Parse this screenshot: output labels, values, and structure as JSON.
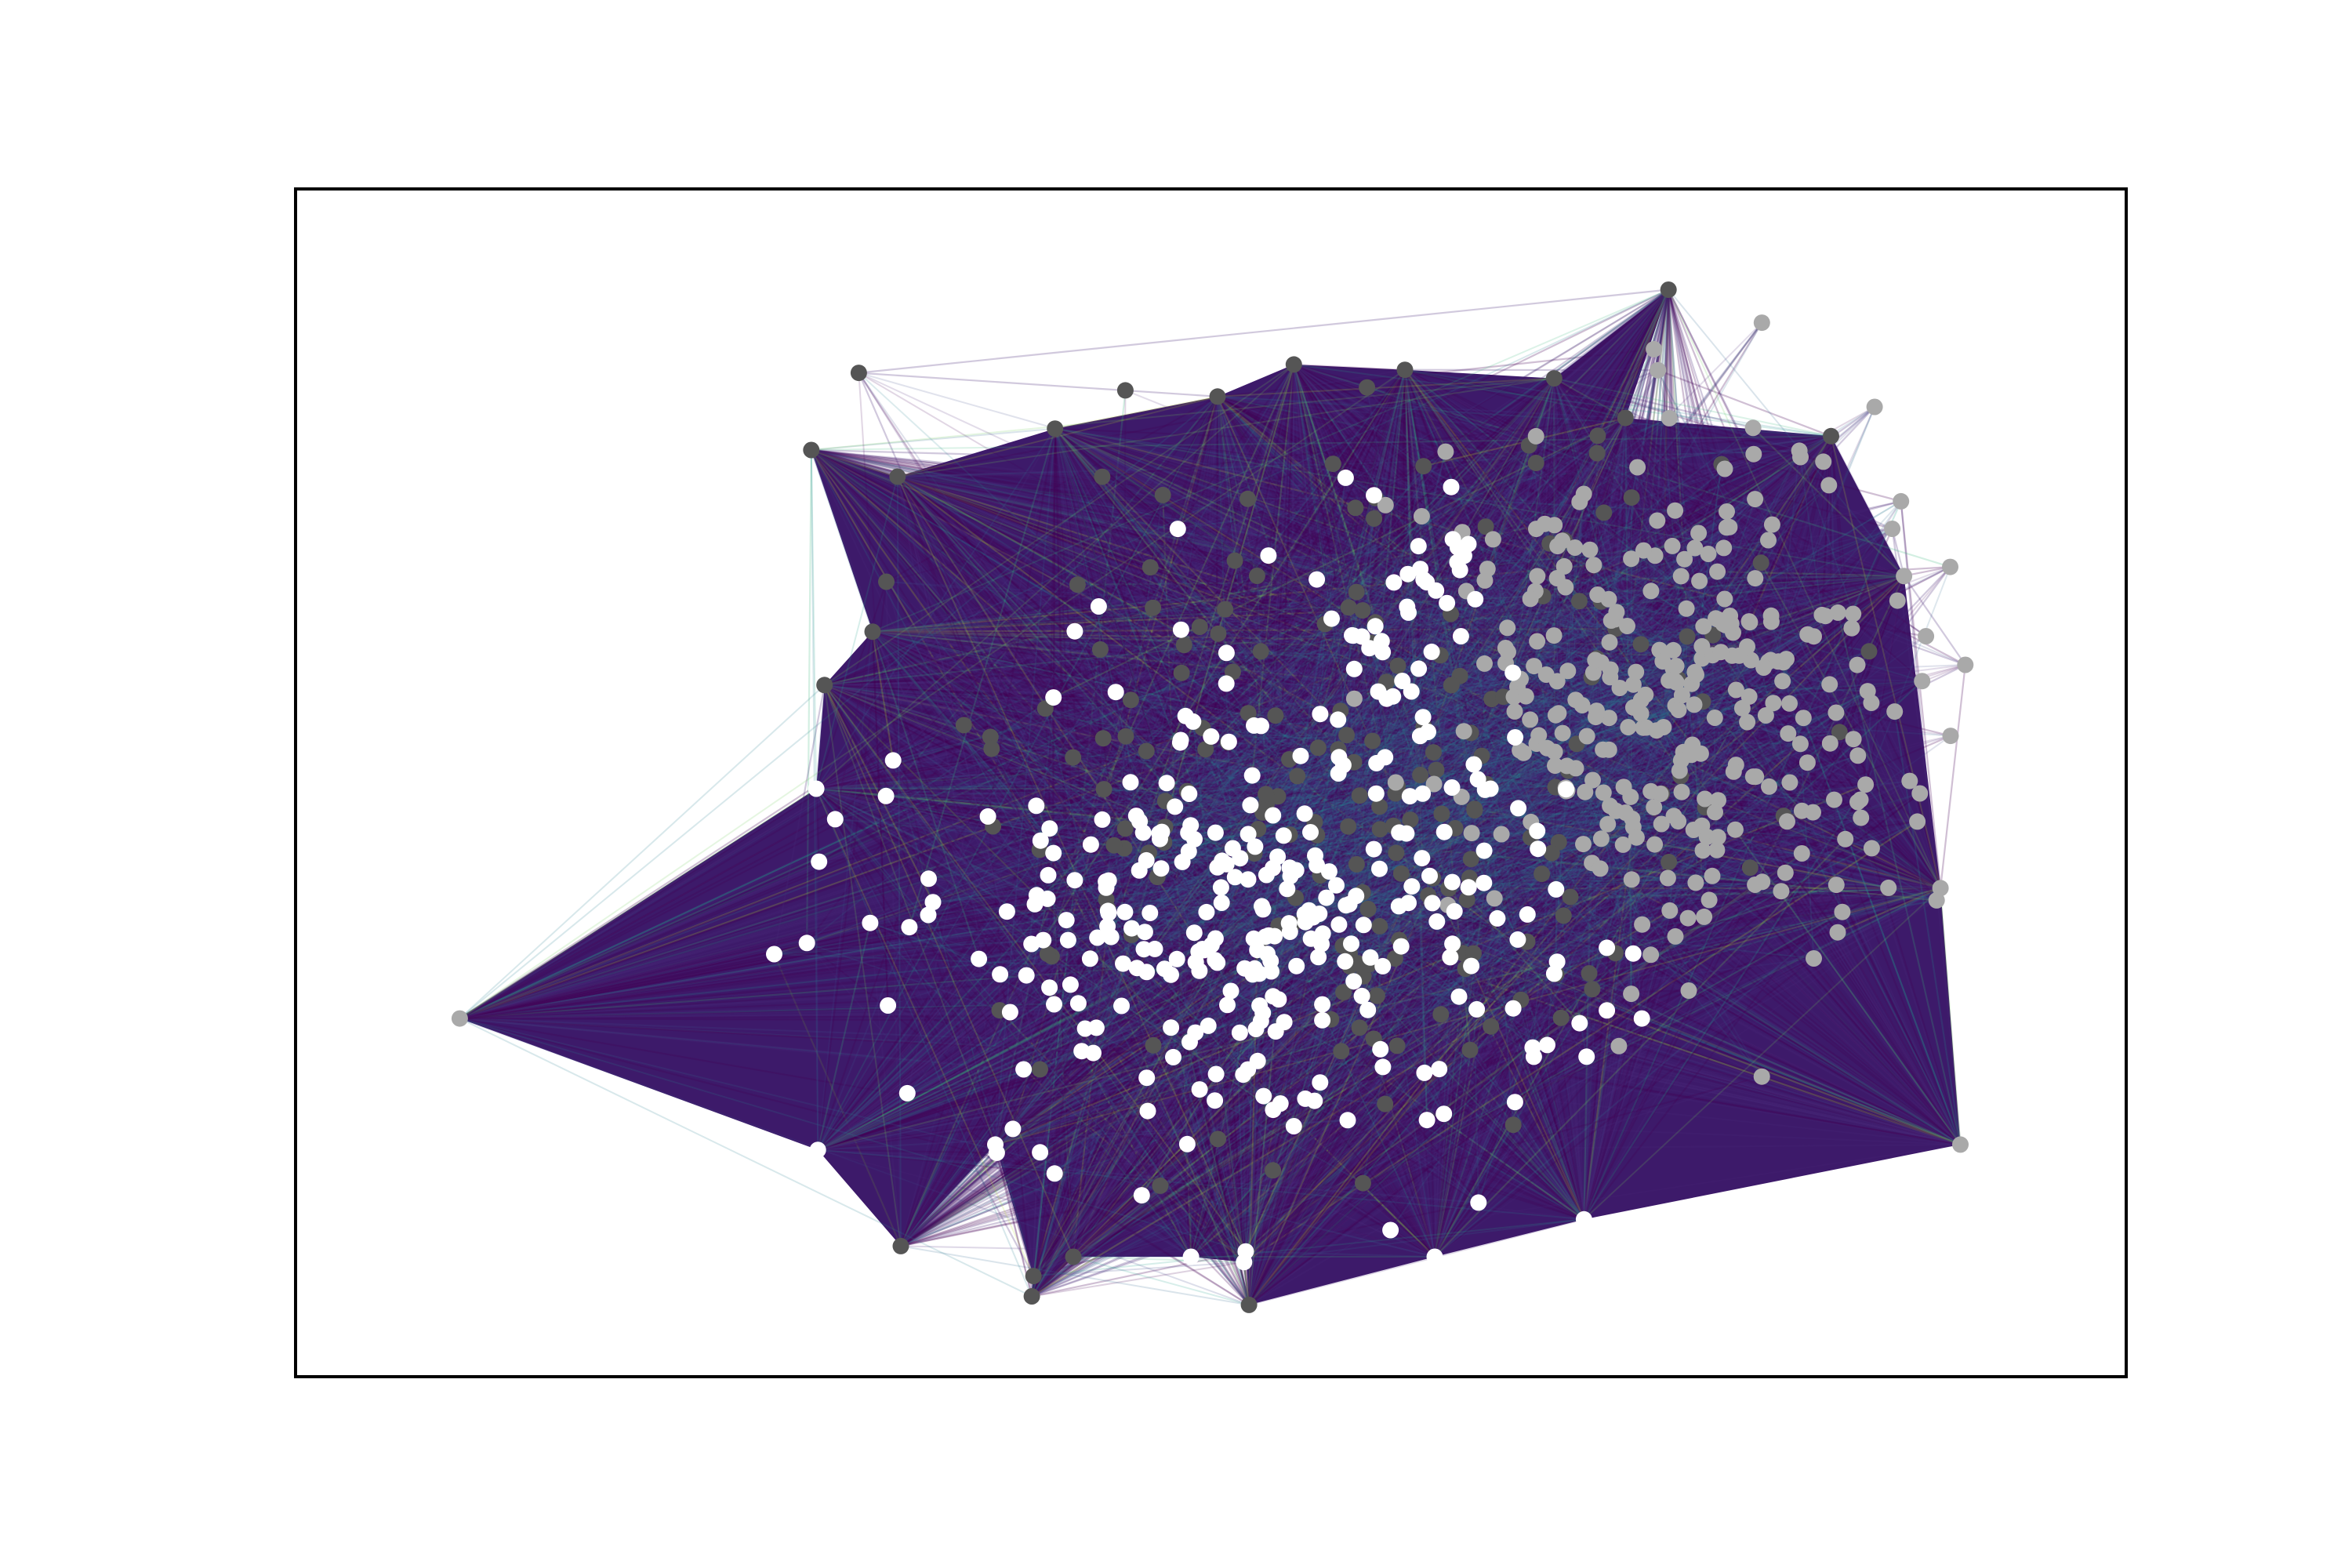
{
  "chart_data": {
    "type": "network",
    "title": "",
    "xlabel": "",
    "ylabel": "",
    "axes_ticks": "none",
    "grid": false,
    "legend": "none",
    "edge_colormap": "viridis",
    "node_groups": [
      {
        "id": "dark",
        "color": "#555555"
      },
      {
        "id": "light",
        "color": "#a9a9a9"
      },
      {
        "id": "white",
        "color": "#ffffff"
      }
    ],
    "hull_nodes": [
      {
        "x": 0.259,
        "y": 0.19,
        "group": "dark"
      },
      {
        "x": 0.504,
        "y": 0.14,
        "group": "dark"
      },
      {
        "x": 0.776,
        "y": 0.04,
        "group": "dark"
      },
      {
        "x": 0.874,
        "y": 0.177,
        "group": "dark"
      },
      {
        "x": 0.918,
        "y": 0.308,
        "group": "light"
      },
      {
        "x": 0.94,
        "y": 0.6,
        "group": "light"
      },
      {
        "x": 0.952,
        "y": 0.84,
        "group": "light"
      },
      {
        "x": 0.725,
        "y": 0.91,
        "group": "white"
      },
      {
        "x": 0.635,
        "y": 0.945,
        "group": "white"
      },
      {
        "x": 0.52,
        "y": 0.95,
        "group": "white"
      },
      {
        "x": 0.521,
        "y": 0.94,
        "group": "white"
      },
      {
        "x": 0.488,
        "y": 0.945,
        "group": "white"
      },
      {
        "x": 0.393,
        "y": 0.963,
        "group": "dark"
      },
      {
        "x": 0.417,
        "y": 0.945,
        "group": "dark"
      },
      {
        "x": 0.313,
        "y": 0.935,
        "group": "dark"
      },
      {
        "x": 0.392,
        "y": 0.982,
        "group": "dark"
      },
      {
        "x": 0.523,
        "y": 0.99,
        "group": "dark"
      },
      {
        "x": 0.047,
        "y": 0.722,
        "group": "light"
      },
      {
        "x": 0.37,
        "y": 0.84,
        "group": "white"
      },
      {
        "x": 0.263,
        "y": 0.845,
        "group": "white"
      },
      {
        "x": 0.262,
        "y": 0.507,
        "group": "white"
      },
      {
        "x": 0.267,
        "y": 0.41,
        "group": "dark"
      },
      {
        "x": 0.296,
        "y": 0.36,
        "group": "dark"
      },
      {
        "x": 0.311,
        "y": 0.215,
        "group": "dark"
      },
      {
        "x": 0.406,
        "y": 0.17,
        "group": "dark"
      },
      {
        "x": 0.55,
        "y": 0.11,
        "group": "dark"
      },
      {
        "x": 0.617,
        "y": 0.115,
        "group": "dark"
      },
      {
        "x": 0.707,
        "y": 0.123,
        "group": "dark"
      },
      {
        "x": 0.75,
        "y": 0.16,
        "group": "dark"
      }
    ],
    "clusters": [
      {
        "group": "light",
        "count": 300,
        "cx": 0.78,
        "cy": 0.42,
        "rx": 0.16,
        "ry": 0.27
      },
      {
        "group": "dark",
        "count": 200,
        "cx": 0.6,
        "cy": 0.48,
        "rx": 0.27,
        "ry": 0.36
      },
      {
        "group": "white",
        "count": 290,
        "cx": 0.52,
        "cy": 0.63,
        "rx": 0.21,
        "ry": 0.24
      },
      {
        "group": "white",
        "count": 40,
        "cx": 0.62,
        "cy": 0.34,
        "rx": 0.08,
        "ry": 0.14
      }
    ]
  }
}
